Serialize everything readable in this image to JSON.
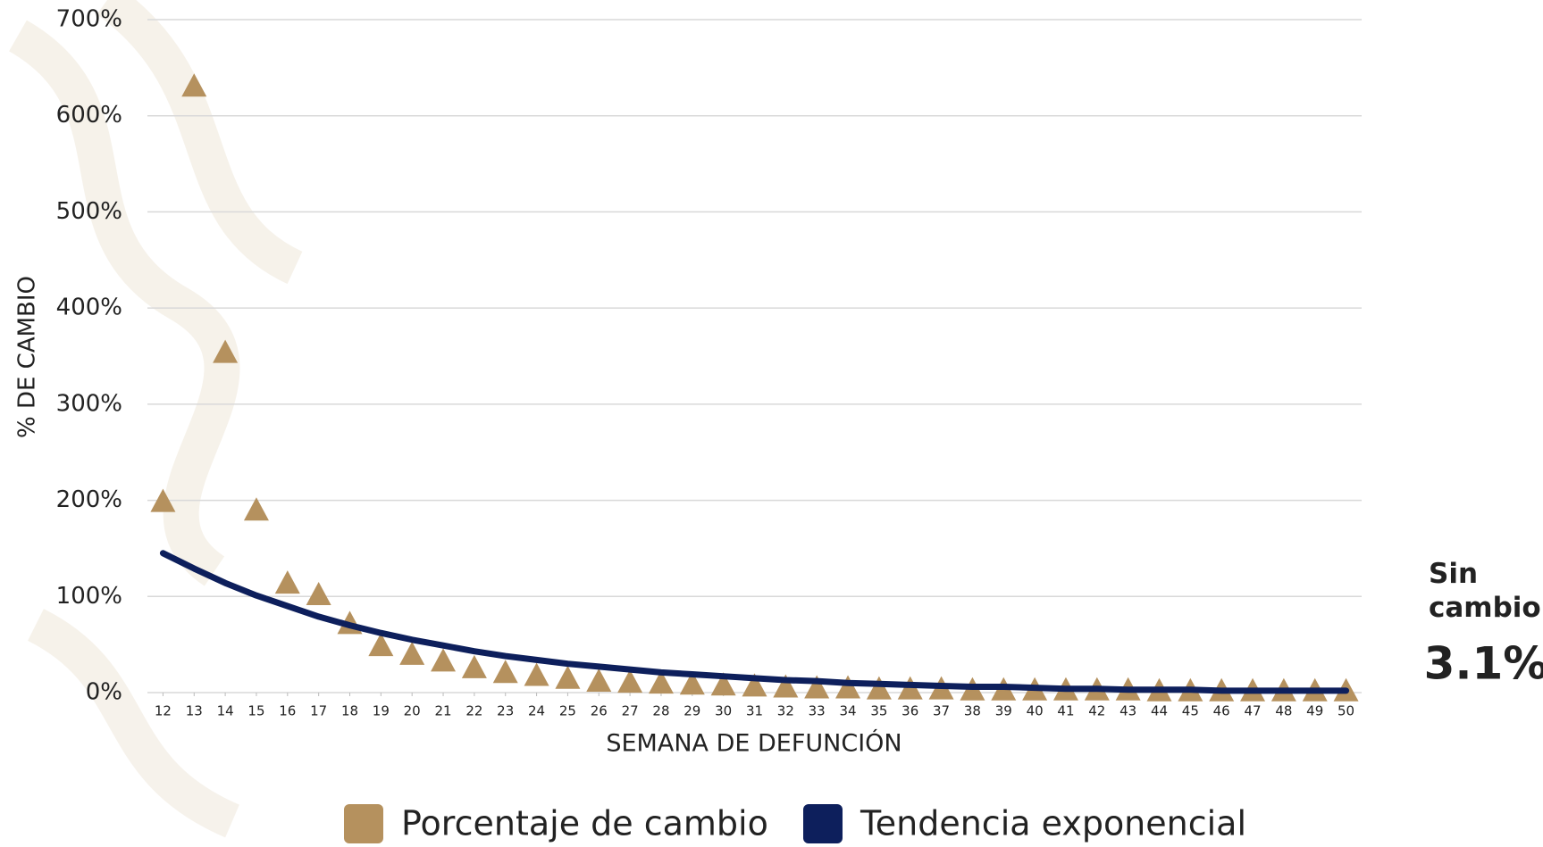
{
  "chart_data": {
    "type": "scatter",
    "x_label": "SEMANA DE DEFUNCIÓN",
    "y_label": "% DE CAMBIO",
    "x": [
      12,
      13,
      14,
      15,
      16,
      17,
      18,
      19,
      20,
      21,
      22,
      23,
      24,
      25,
      26,
      27,
      28,
      29,
      30,
      31,
      32,
      33,
      34,
      35,
      36,
      37,
      38,
      39,
      40,
      41,
      42,
      43,
      44,
      45,
      46,
      47,
      48,
      49,
      50
    ],
    "series": [
      {
        "name": "Porcentaje de cambio",
        "color": "#b5915e",
        "type": "scatter",
        "values": [
          200,
          632,
          355,
          191,
          115,
          103,
          73,
          50,
          41,
          34,
          27,
          22,
          19,
          16,
          13,
          12,
          11,
          10,
          9,
          8,
          7,
          6,
          6,
          5,
          5,
          5,
          4,
          4,
          4,
          4,
          4,
          4,
          3,
          3,
          3,
          3,
          3,
          3,
          3
        ]
      },
      {
        "name": "Tendencia exponencial",
        "color": "#0d1f5c",
        "type": "line",
        "values": [
          145,
          129,
          114,
          101,
          90,
          79,
          70,
          62,
          55,
          49,
          43,
          38,
          34,
          30,
          27,
          24,
          21,
          19,
          17,
          15,
          13,
          12,
          10,
          9,
          8,
          7,
          6,
          6,
          5,
          4,
          4,
          3,
          3,
          3,
          2,
          2,
          2,
          2,
          2
        ]
      }
    ],
    "xlim": [
      11.5,
      50.5
    ],
    "xticks": [
      12,
      13,
      14,
      15,
      16,
      17,
      18,
      19,
      20,
      21,
      22,
      23,
      24,
      25,
      26,
      27,
      28,
      29,
      30,
      31,
      32,
      33,
      34,
      35,
      36,
      37,
      38,
      39,
      40,
      41,
      42,
      43,
      44,
      45,
      46,
      47,
      48,
      49,
      50
    ],
    "ylim": [
      0,
      700
    ],
    "yticks": [
      {
        "value": 0,
        "label": "0%"
      },
      {
        "value": 100,
        "label": "100%"
      },
      {
        "value": 200,
        "label": "200%"
      },
      {
        "value": 300,
        "label": "300%"
      },
      {
        "value": 400,
        "label": "400%"
      },
      {
        "value": 500,
        "label": "500%"
      },
      {
        "value": 600,
        "label": "600%"
      },
      {
        "value": 700,
        "label": "700%"
      }
    ],
    "grid": true,
    "annotations": [
      {
        "text": "Sin cambio",
        "color": "#19a851"
      },
      {
        "text": "3.1%",
        "color": "#b5915e"
      }
    ]
  }
}
